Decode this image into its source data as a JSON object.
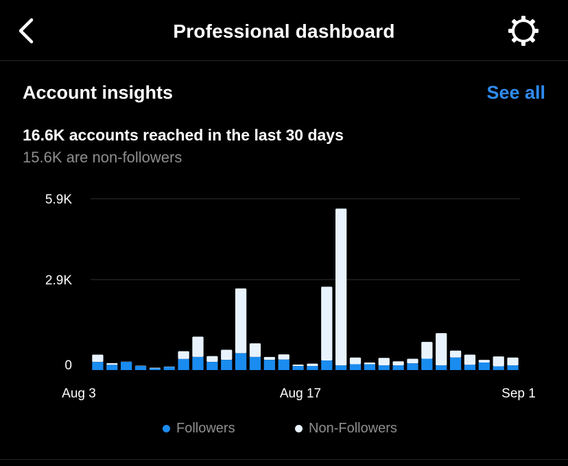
{
  "header": {
    "title": "Professional dashboard",
    "back_icon": "chevron-left-icon",
    "settings_icon": "gear-icon"
  },
  "insights": {
    "title": "Account insights",
    "see_all": "See all",
    "reach": "16.6K accounts reached in the last 30 days",
    "non_followers": "15.6K are non-followers"
  },
  "colors": {
    "followers": "#1a8cf0",
    "non_followers": "#e8f3fe",
    "accent": "#2f8cf0"
  },
  "chart_data": {
    "type": "bar",
    "stacked": true,
    "ylabels": [
      "5.9K",
      "2.9K",
      "0"
    ],
    "ylim": [
      0,
      5900
    ],
    "grid": true,
    "xticks": [
      "Aug 3",
      "Aug 17",
      "Sep 1"
    ],
    "categories": [
      "Aug 3",
      "Aug 4",
      "Aug 5",
      "Aug 6",
      "Aug 7",
      "Aug 8",
      "Aug 9",
      "Aug 10",
      "Aug 11",
      "Aug 12",
      "Aug 13",
      "Aug 14",
      "Aug 15",
      "Aug 16",
      "Aug 17",
      "Aug 18",
      "Aug 19",
      "Aug 20",
      "Aug 21",
      "Aug 22",
      "Aug 23",
      "Aug 24",
      "Aug 25",
      "Aug 26",
      "Aug 27",
      "Aug 28",
      "Aug 29",
      "Aug 30",
      "Aug 31",
      "Sep 1"
    ],
    "series": [
      {
        "name": "Followers",
        "values": [
          280,
          180,
          280,
          140,
          60,
          110,
          380,
          450,
          280,
          350,
          580,
          450,
          350,
          360,
          140,
          140,
          330,
          160,
          200,
          200,
          160,
          160,
          230,
          390,
          160,
          430,
          180,
          260,
          130,
          160
        ]
      },
      {
        "name": "Non-Followers",
        "values": [
          250,
          60,
          10,
          10,
          20,
          10,
          270,
          700,
          200,
          350,
          2230,
          470,
          100,
          180,
          50,
          80,
          2540,
          5400,
          230,
          60,
          260,
          140,
          160,
          580,
          1110,
          240,
          350,
          90,
          340,
          270
        ]
      }
    ],
    "legend_position": "bottom"
  }
}
